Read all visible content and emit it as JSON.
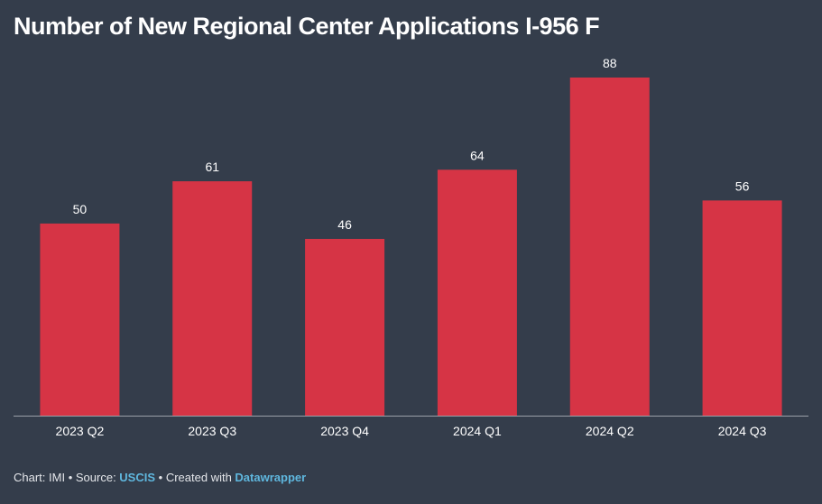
{
  "chart_data": {
    "type": "bar",
    "title": "Number of New Regional Center Applications I-956 F",
    "categories": [
      "2023 Q2",
      "2023 Q3",
      "2023 Q4",
      "2024 Q1",
      "2024 Q2",
      "2024 Q3"
    ],
    "values": [
      50,
      61,
      46,
      64,
      88,
      56
    ],
    "xlabel": "",
    "ylabel": "",
    "ylim": [
      0,
      88
    ],
    "grid": false,
    "data_labels": true
  },
  "colors": {
    "background": "#343d4b",
    "bar": "#d63445",
    "text": "#ffffff",
    "axis": "#9aa0a8",
    "link": "#5fb7de"
  },
  "footer": {
    "chart_prefix": "Chart: IMI",
    "source_prefix": "Source: ",
    "source_link": "USCIS",
    "created_prefix": "Created with ",
    "created_link": "Datawrapper"
  }
}
